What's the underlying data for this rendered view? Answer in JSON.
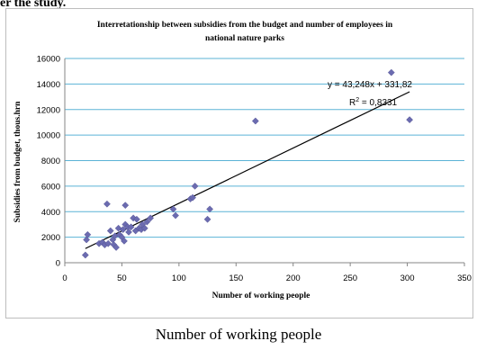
{
  "fragment_top": "er the study.",
  "caption": "Number of working people",
  "chart_data": {
    "type": "scatter",
    "title_lines": [
      "Interretationship between subsidies from the budget and number of employees in",
      "national nature parks"
    ],
    "xlabel": "Number of working people",
    "ylabel": "Subsidies from budget, thous.hrn",
    "xlim": [
      0,
      350
    ],
    "ylim": [
      0,
      16000
    ],
    "xticks": [
      0,
      50,
      100,
      150,
      200,
      250,
      300,
      350
    ],
    "yticks": [
      0,
      2000,
      4000,
      6000,
      8000,
      10000,
      12000,
      14000,
      16000
    ],
    "grid": "horizontal",
    "points": [
      [
        18,
        600
      ],
      [
        19,
        1800
      ],
      [
        20,
        2200
      ],
      [
        30,
        1500
      ],
      [
        33,
        1600
      ],
      [
        35,
        1400
      ],
      [
        37,
        4600
      ],
      [
        38,
        1500
      ],
      [
        40,
        2500
      ],
      [
        42,
        1800
      ],
      [
        43,
        1400
      ],
      [
        44,
        2100
      ],
      [
        45,
        1200
      ],
      [
        47,
        2700
      ],
      [
        48,
        2200
      ],
      [
        50,
        2000
      ],
      [
        51,
        2600
      ],
      [
        52,
        1700
      ],
      [
        53,
        3000
      ],
      [
        53,
        4500
      ],
      [
        55,
        2800
      ],
      [
        56,
        2400
      ],
      [
        58,
        2800
      ],
      [
        60,
        3500
      ],
      [
        62,
        2500
      ],
      [
        63,
        3400
      ],
      [
        65,
        2700
      ],
      [
        67,
        2600
      ],
      [
        68,
        3000
      ],
      [
        70,
        2700
      ],
      [
        72,
        3200
      ],
      [
        75,
        3500
      ],
      [
        95,
        4200
      ],
      [
        97,
        3700
      ],
      [
        110,
        5000
      ],
      [
        112,
        5100
      ],
      [
        114,
        6000
      ],
      [
        125,
        3400
      ],
      [
        127,
        4200
      ],
      [
        167,
        11100
      ],
      [
        286,
        14900
      ],
      [
        302,
        11200
      ]
    ],
    "trendline": {
      "slope": 43.248,
      "intercept": 331.82,
      "x_from": 18,
      "x_to": 302
    },
    "equation_label": "y = 43,248x + 331,82",
    "r2_prefix": "R",
    "r2_sup": "2",
    "r2_value": " = 0,8331",
    "marker_color": "#6b6bb0",
    "line_color": "#000000",
    "grid_color": "#5bb3d6"
  }
}
